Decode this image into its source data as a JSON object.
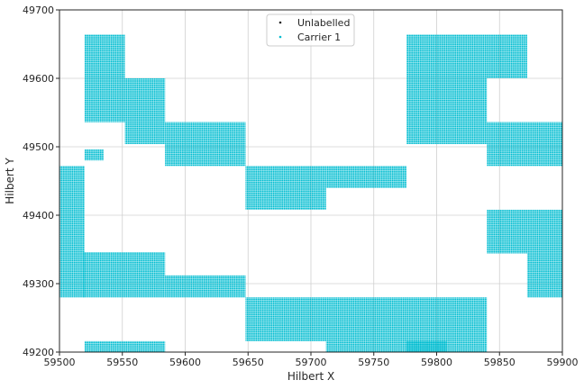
{
  "chart_data": {
    "type": "scatter",
    "xlabel": "Hilbert X",
    "ylabel": "Hilbert Y",
    "xlim": [
      59500,
      59900
    ],
    "ylim": [
      49200,
      49700
    ],
    "xticks": [
      59500,
      59550,
      59600,
      59650,
      59700,
      59750,
      59800,
      59850,
      59900
    ],
    "yticks": [
      49200,
      49300,
      49400,
      49500,
      49600,
      49700
    ],
    "grid": true,
    "legend_position": "top-center",
    "series": [
      {
        "name": "Unlabelled",
        "color": "#262626",
        "marker": "dot",
        "regions": []
      },
      {
        "name": "Carrier 1",
        "color": "#00bcd0",
        "marker": "dot",
        "regions": [
          {
            "x": [
              59500,
              59520
            ],
            "y": [
              49280,
              49472
            ]
          },
          {
            "x": [
              59519,
              59584
            ],
            "y": [
              49280,
              49346
            ]
          },
          {
            "x": [
              59584,
              59648
            ],
            "y": [
              49280,
              49312
            ]
          },
          {
            "x": [
              59520,
              59584
            ],
            "y": [
              49200,
              49216
            ]
          },
          {
            "x": [
              59520,
              59535
            ],
            "y": [
              49480,
              49496
            ]
          },
          {
            "x": [
              59520,
              59552
            ],
            "y": [
              49536,
              49664
            ]
          },
          {
            "x": [
              59552,
              59584
            ],
            "y": [
              49504,
              49600
            ]
          },
          {
            "x": [
              59584,
              59648
            ],
            "y": [
              49472,
              49536
            ]
          },
          {
            "x": [
              59648,
              59712
            ],
            "y": [
              49408,
              49472
            ]
          },
          {
            "x": [
              59712,
              59776
            ],
            "y": [
              49440,
              49472
            ]
          },
          {
            "x": [
              59776,
              59840
            ],
            "y": [
              49504,
              49600
            ]
          },
          {
            "x": [
              59776,
              59872
            ],
            "y": [
              49600,
              49664
            ]
          },
          {
            "x": [
              59840,
              59904
            ],
            "y": [
              49472,
              49536
            ]
          },
          {
            "x": [
              59840,
              59904
            ],
            "y": [
              49344,
              49408
            ]
          },
          {
            "x": [
              59872,
              59904
            ],
            "y": [
              49280,
              49344
            ]
          },
          {
            "x": [
              59648,
              59840
            ],
            "y": [
              49216,
              49280
            ]
          },
          {
            "x": [
              59712,
              59808
            ],
            "y": [
              49200,
              49216
            ]
          },
          {
            "x": [
              59776,
              59840
            ],
            "y": [
              49200,
              49216
            ]
          }
        ]
      }
    ]
  }
}
